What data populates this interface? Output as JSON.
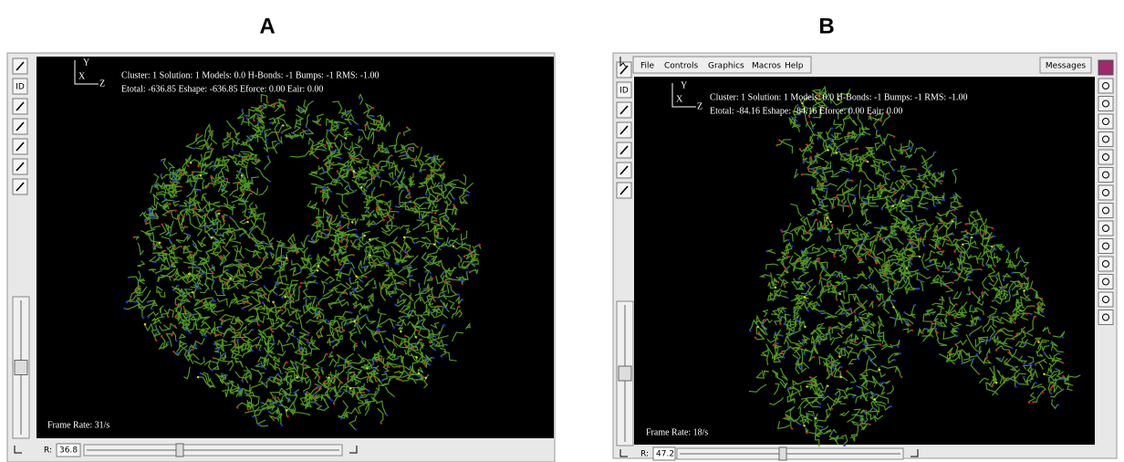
{
  "panels": [
    {
      "label": "A",
      "toolbar": [
        "ID"
      ],
      "overlay": {
        "axis_y": "Y",
        "axis_x": "X",
        "axis_z": "Z",
        "status_line_1": "Cluster: 1 Solution: 1 Models: 0.0 H-Bonds: -1 Bumps: -1 RMS: -1.00",
        "status_line_2": "Etotal: -636.85 Eshape: -636.85 Eforce: 0.00 Eair: 0.00",
        "frame_rate": "Frame Rate: 31/s"
      },
      "bottom": {
        "r_label": "R:",
        "r_value": "36.8"
      }
    },
    {
      "label": "B",
      "menu": [
        "File",
        "Controls",
        "Graphics",
        "Macros",
        "Help"
      ],
      "messages_button": "Messages",
      "toolbar": [
        "ID"
      ],
      "overlay": {
        "axis_y": "Y",
        "axis_x": "X",
        "axis_z": "Z",
        "status_line_1": "Cluster: 1 Solution: 1 Models: 0.0 H-Bonds: -1 Bumps: -1 RMS: -1.00",
        "status_line_2": "Etotal: -84.16 Eshape: -84.16 Eforce: 0.00 Eair: 0.00",
        "frame_rate": "Frame Rate: 18/s"
      },
      "bottom": {
        "r_label": "R:",
        "r_value": "47.2"
      }
    }
  ]
}
